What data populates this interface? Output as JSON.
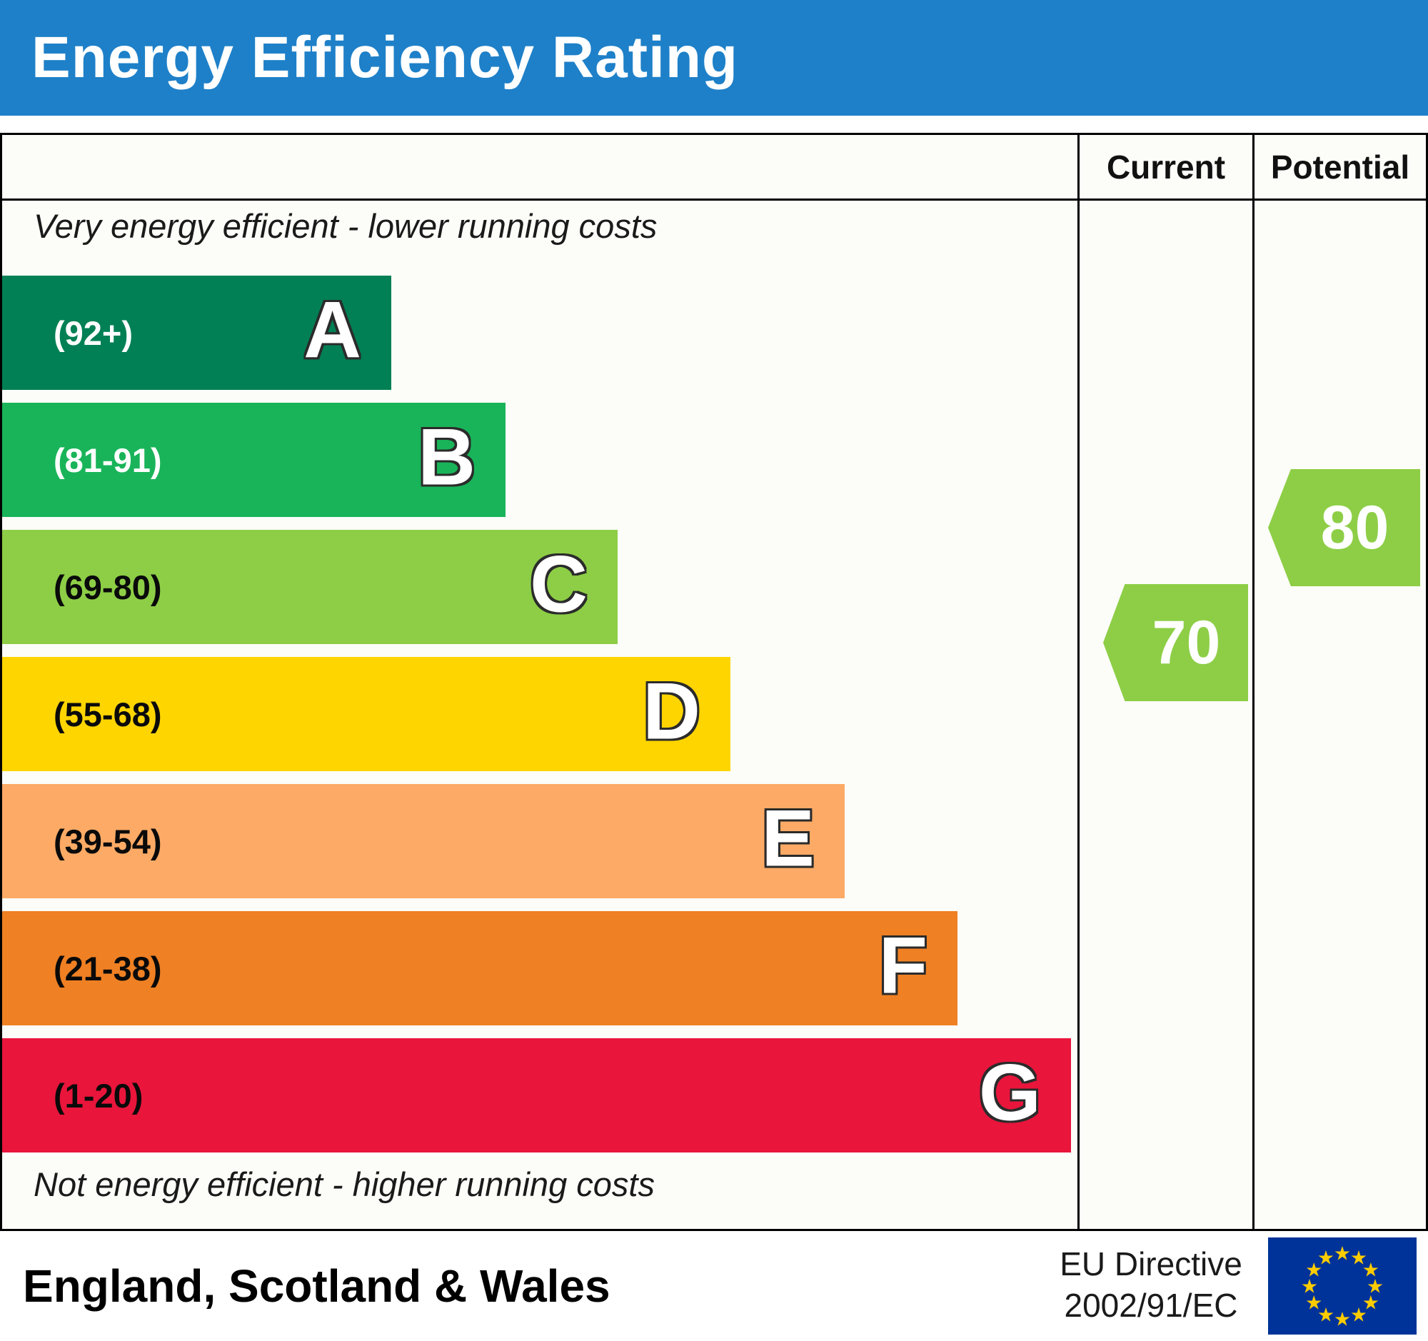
{
  "chart_data": {
    "type": "bar",
    "title": "Energy Efficiency Rating",
    "annotations": {
      "top": "Very energy efficient - lower running costs",
      "bottom": "Not energy efficient - higher running costs"
    },
    "scale": {
      "min": 1,
      "max": 100
    },
    "bands": [
      {
        "letter": "A",
        "label": "(92+)",
        "min": 92,
        "max": 100,
        "color": "#008054",
        "label_color": "#ffffff"
      },
      {
        "letter": "B",
        "label": "(81-91)",
        "min": 81,
        "max": 91,
        "color": "#19b459",
        "label_color": "#ffffff"
      },
      {
        "letter": "C",
        "label": "(69-80)",
        "min": 69,
        "max": 80,
        "color": "#8dce46",
        "label_color": "#0a0a0a"
      },
      {
        "letter": "D",
        "label": "(55-68)",
        "min": 55,
        "max": 68,
        "color": "#ffd500",
        "label_color": "#0a0a0a"
      },
      {
        "letter": "E",
        "label": "(39-54)",
        "min": 39,
        "max": 54,
        "color": "#fcaa65",
        "label_color": "#0a0a0a"
      },
      {
        "letter": "F",
        "label": "(21-38)",
        "min": 21,
        "max": 38,
        "color": "#ef8023",
        "label_color": "#0a0a0a"
      },
      {
        "letter": "G",
        "label": "(1-20)",
        "min": 1,
        "max": 20,
        "color": "#e9153b",
        "label_color": "#0a0a0a"
      }
    ],
    "markers": [
      {
        "label": "Current",
        "value": 70,
        "band": "C",
        "color": "#8dce46"
      },
      {
        "label": "Potential",
        "value": 80,
        "band": "C",
        "color": "#8dce46"
      }
    ]
  },
  "footer": {
    "region": "England, Scotland & Wales",
    "directive_line1": "EU Directive",
    "directive_line2": "2002/91/EC",
    "eu_flag_colors": {
      "background": "#003399",
      "stars": "#ffcc00"
    }
  }
}
